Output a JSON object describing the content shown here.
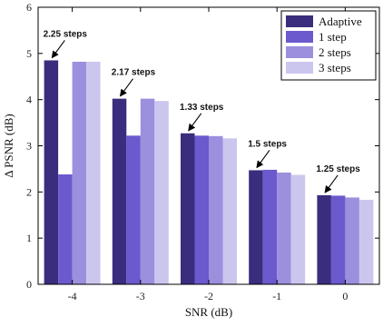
{
  "chart_data": {
    "type": "bar",
    "xlabel": "SNR (dB)",
    "ylabel": "Δ PSNR (dB)",
    "categories": [
      "-4",
      "-3",
      "-2",
      "-1",
      "0"
    ],
    "ylim": [
      0,
      6
    ],
    "yticks": [
      "0",
      "1",
      "2",
      "3",
      "4",
      "5",
      "6"
    ],
    "grid": false,
    "legend_position": "top-right",
    "series": [
      {
        "name": "Adaptive",
        "color": "#3a2d7e",
        "values": [
          4.85,
          4.02,
          3.27,
          2.47,
          1.93
        ]
      },
      {
        "name": "1 step",
        "color": "#6a5acd",
        "values": [
          2.38,
          3.22,
          3.22,
          2.48,
          1.92
        ]
      },
      {
        "name": "2 steps",
        "color": "#9b8fde",
        "values": [
          4.82,
          4.02,
          3.21,
          2.42,
          1.88
        ]
      },
      {
        "name": "3 steps",
        "color": "#cbc6ee",
        "values": [
          4.82,
          3.97,
          3.16,
          2.37,
          1.83
        ]
      }
    ],
    "annotations": [
      {
        "category": "-4",
        "text": "2.25 steps"
      },
      {
        "category": "-3",
        "text": "2.17 steps"
      },
      {
        "category": "-2",
        "text": "1.33 steps"
      },
      {
        "category": "-1",
        "text": "1.5 steps"
      },
      {
        "category": "0",
        "text": "1.25 steps"
      }
    ]
  }
}
